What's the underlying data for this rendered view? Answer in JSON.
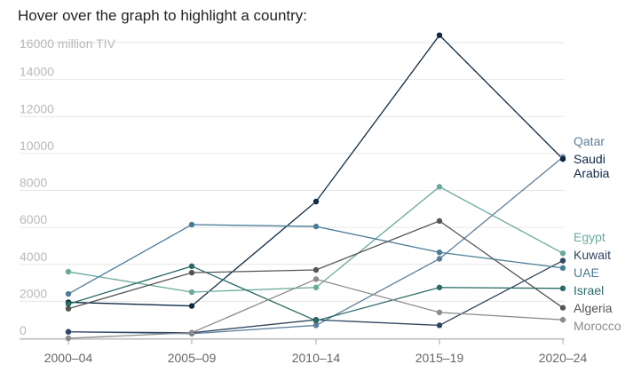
{
  "header": {
    "prompt": "Hover over the graph to highlight a country:"
  },
  "chart_data": {
    "type": "line",
    "title": "",
    "xlabel": "",
    "ylabel": "",
    "y_unit_label": "16000 million TIV",
    "ylim": [
      0,
      16000
    ],
    "y_ticks": [
      0,
      2000,
      4000,
      6000,
      8000,
      10000,
      12000,
      14000
    ],
    "grid": true,
    "x": [
      "2000–04",
      "2005–09",
      "2010–14",
      "2015–19",
      "2020–24"
    ],
    "series": [
      {
        "name": "Qatar",
        "label_lines": [
          "Qatar"
        ],
        "color": "#5e7f99",
        "values": [
          350,
          250,
          700,
          4300,
          9800
        ]
      },
      {
        "name": "Saudi Arabia",
        "label_lines": [
          "Saudi",
          "Arabia"
        ],
        "color": "#0f2a45",
        "values": [
          1950,
          1750,
          7400,
          16400,
          9700
        ]
      },
      {
        "name": "Egypt",
        "label_lines": [
          "Egypt"
        ],
        "color": "#6aaa9c",
        "values": [
          3600,
          2500,
          2750,
          8200,
          4600
        ]
      },
      {
        "name": "Kuwait",
        "label_lines": [
          "Kuwait"
        ],
        "color": "#2f4860",
        "values": [
          350,
          300,
          1000,
          700,
          4200
        ]
      },
      {
        "name": "UAE",
        "label_lines": [
          "UAE"
        ],
        "color": "#4a7d97",
        "values": [
          2400,
          6150,
          6050,
          4650,
          3800
        ]
      },
      {
        "name": "Israel",
        "label_lines": [
          "Israel"
        ],
        "color": "#2a6b66",
        "values": [
          1850,
          3900,
          950,
          2750,
          2700
        ]
      },
      {
        "name": "Algeria",
        "label_lines": [
          "Algeria"
        ],
        "color": "#555555",
        "values": [
          1600,
          3550,
          3700,
          6350,
          1650
        ]
      },
      {
        "name": "Morocco",
        "label_lines": [
          "Morocco"
        ],
        "color": "#8c8c8c",
        "values": [
          0,
          300,
          3200,
          1400,
          1000
        ]
      }
    ]
  }
}
